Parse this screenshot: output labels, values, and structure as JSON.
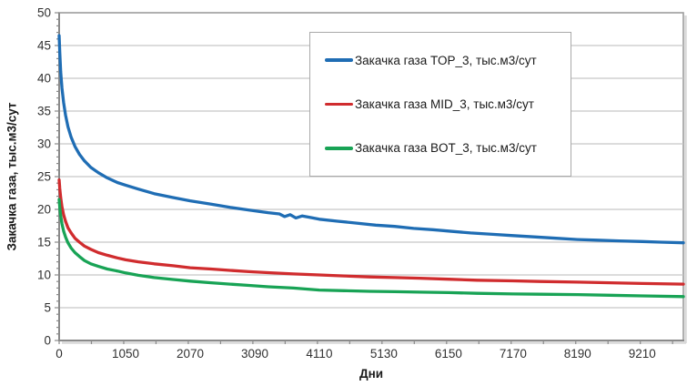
{
  "chart_data": {
    "type": "line",
    "title": "",
    "xlabel": "Дни",
    "ylabel": "Закачка газа, тыс.м3/сут",
    "grid": "horizontal",
    "legend_position": "top-center-inside",
    "x_axis": {
      "min": 0,
      "max": 9860,
      "tick_labels": [
        0,
        1050,
        2070,
        3090,
        4110,
        5130,
        6150,
        7170,
        8190,
        9210
      ],
      "major_tick_step": 1020,
      "minor_tick_step": 510
    },
    "y_axis": {
      "min": 0,
      "max": 50,
      "tick_labels": [
        0,
        5,
        10,
        15,
        20,
        25,
        30,
        35,
        40,
        45,
        50
      ],
      "major_tick_step": 5,
      "minor_tick_step": 1
    },
    "series": [
      {
        "name": "Закачка газа TOP_3, тыс.м3/сут",
        "color": "#1F6DB4",
        "points": [
          [
            0,
            46.5
          ],
          [
            10,
            44
          ],
          [
            25,
            41
          ],
          [
            45,
            38.5
          ],
          [
            70,
            36.3
          ],
          [
            100,
            34.4
          ],
          [
            140,
            32.6
          ],
          [
            190,
            31
          ],
          [
            250,
            29.6
          ],
          [
            320,
            28.4
          ],
          [
            400,
            27.4
          ],
          [
            500,
            26.4
          ],
          [
            620,
            25.6
          ],
          [
            760,
            24.8
          ],
          [
            920,
            24.1
          ],
          [
            1050,
            23.7
          ],
          [
            1250,
            23.1
          ],
          [
            1500,
            22.4
          ],
          [
            1800,
            21.8
          ],
          [
            2070,
            21.3
          ],
          [
            2400,
            20.8
          ],
          [
            2700,
            20.3
          ],
          [
            3000,
            19.9
          ],
          [
            3300,
            19.5
          ],
          [
            3480,
            19.3
          ],
          [
            3560,
            18.9
          ],
          [
            3650,
            19.2
          ],
          [
            3740,
            18.7
          ],
          [
            3840,
            19
          ],
          [
            3950,
            18.8
          ],
          [
            4110,
            18.5
          ],
          [
            4400,
            18.2
          ],
          [
            4700,
            17.9
          ],
          [
            5000,
            17.6
          ],
          [
            5300,
            17.4
          ],
          [
            5600,
            17.1
          ],
          [
            5900,
            16.9
          ],
          [
            6150,
            16.7
          ],
          [
            6500,
            16.4
          ],
          [
            6850,
            16.2
          ],
          [
            7170,
            16
          ],
          [
            7500,
            15.8
          ],
          [
            7850,
            15.6
          ],
          [
            8190,
            15.4
          ],
          [
            8500,
            15.3
          ],
          [
            8850,
            15.2
          ],
          [
            9210,
            15.1
          ],
          [
            9500,
            15
          ],
          [
            9860,
            14.9
          ]
        ]
      },
      {
        "name": "Закачка газа MID_3, тыс.м3/сут",
        "color": "#D02C2E",
        "points": [
          [
            0,
            24.5
          ],
          [
            10,
            23.2
          ],
          [
            25,
            21.8
          ],
          [
            45,
            20.4
          ],
          [
            70,
            19.2
          ],
          [
            100,
            18.2
          ],
          [
            140,
            17.2
          ],
          [
            190,
            16.4
          ],
          [
            250,
            15.6
          ],
          [
            320,
            15
          ],
          [
            400,
            14.4
          ],
          [
            500,
            13.9
          ],
          [
            620,
            13.4
          ],
          [
            760,
            13
          ],
          [
            920,
            12.6
          ],
          [
            1050,
            12.3
          ],
          [
            1250,
            12
          ],
          [
            1500,
            11.7
          ],
          [
            1800,
            11.4
          ],
          [
            2070,
            11.1
          ],
          [
            2400,
            10.9
          ],
          [
            2700,
            10.7
          ],
          [
            3000,
            10.5
          ],
          [
            3300,
            10.35
          ],
          [
            3700,
            10.15
          ],
          [
            4110,
            10
          ],
          [
            4500,
            9.85
          ],
          [
            4900,
            9.7
          ],
          [
            5300,
            9.6
          ],
          [
            5700,
            9.5
          ],
          [
            6150,
            9.35
          ],
          [
            6600,
            9.2
          ],
          [
            7170,
            9.1
          ],
          [
            7600,
            9
          ],
          [
            8190,
            8.9
          ],
          [
            8700,
            8.8
          ],
          [
            9210,
            8.7
          ],
          [
            9860,
            8.6
          ]
        ]
      },
      {
        "name": "Закачка газа BOT_3, тыс.м3/сут",
        "color": "#18A355",
        "points": [
          [
            0,
            21.5
          ],
          [
            10,
            20.3
          ],
          [
            25,
            19
          ],
          [
            45,
            17.8
          ],
          [
            70,
            16.7
          ],
          [
            100,
            15.8
          ],
          [
            140,
            14.9
          ],
          [
            190,
            14.1
          ],
          [
            250,
            13.4
          ],
          [
            320,
            12.8
          ],
          [
            400,
            12.2
          ],
          [
            500,
            11.7
          ],
          [
            620,
            11.3
          ],
          [
            760,
            10.9
          ],
          [
            920,
            10.6
          ],
          [
            1050,
            10.3
          ],
          [
            1250,
            9.95
          ],
          [
            1500,
            9.6
          ],
          [
            1800,
            9.3
          ],
          [
            2070,
            9.05
          ],
          [
            2400,
            8.8
          ],
          [
            2700,
            8.6
          ],
          [
            3000,
            8.4
          ],
          [
            3300,
            8.2
          ],
          [
            3700,
            8
          ],
          [
            4110,
            7.7
          ],
          [
            4500,
            7.6
          ],
          [
            4900,
            7.5
          ],
          [
            5300,
            7.45
          ],
          [
            5700,
            7.38
          ],
          [
            6150,
            7.3
          ],
          [
            6600,
            7.2
          ],
          [
            7170,
            7.1
          ],
          [
            7600,
            7.05
          ],
          [
            8190,
            7
          ],
          [
            8700,
            6.9
          ],
          [
            9210,
            6.8
          ],
          [
            9860,
            6.7
          ]
        ]
      }
    ]
  },
  "colors": {
    "background": "#FFFFFF",
    "gridline": "#C7C7C7",
    "plot_border": "#9C9C9C",
    "axis_line": "#8A8A8A",
    "shadow": "#D8D8D8",
    "tick_text": "#303030"
  }
}
